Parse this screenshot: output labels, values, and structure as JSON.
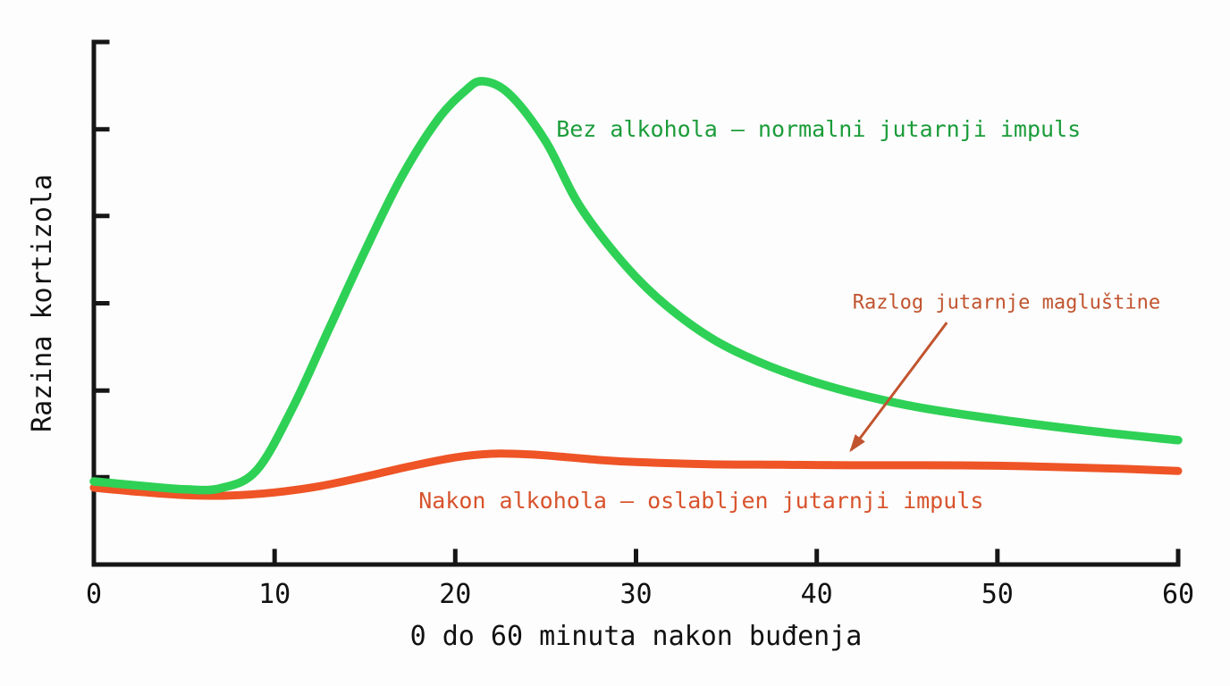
{
  "chart_data": {
    "type": "line",
    "title": "",
    "xlabel": "0 do 60 minuta nakon buđenja",
    "ylabel": "Razina kortizola",
    "xlim": [
      0,
      60
    ],
    "ylim": [
      0,
      100
    ],
    "x_ticks": [
      0,
      10,
      20,
      30,
      40,
      50,
      60
    ],
    "y_tick_positions": [
      100,
      83.3,
      66.7,
      50,
      33.3,
      16.7
    ],
    "grid": false,
    "legend_position": "inline-labels",
    "axis_color": "#161616",
    "series": [
      {
        "name": "Nakon alkohola — oslabljen jutarnji impuls",
        "color": "#ee5426",
        "label_color": "#d8532c",
        "label_pos": [
          33.6,
          12.0
        ],
        "points": [
          [
            0,
            14.7
          ],
          [
            2.5,
            13.9
          ],
          [
            5,
            13.3
          ],
          [
            7.5,
            13.2
          ],
          [
            10,
            13.8
          ],
          [
            12.5,
            15.0
          ],
          [
            15,
            16.8
          ],
          [
            17.5,
            18.8
          ],
          [
            20,
            20.5
          ],
          [
            22,
            21.2
          ],
          [
            24,
            21.1
          ],
          [
            26,
            20.6
          ],
          [
            28,
            20.0
          ],
          [
            30,
            19.6
          ],
          [
            34,
            19.2
          ],
          [
            38,
            19.1
          ],
          [
            42,
            19.0
          ],
          [
            46,
            19.0
          ],
          [
            50,
            18.9
          ],
          [
            54,
            18.6
          ],
          [
            57,
            18.3
          ],
          [
            60,
            17.9
          ]
        ]
      },
      {
        "name": "Bez alkohola — normalni jutarnji impuls",
        "color": "#2ed155",
        "label_color": "#1b9c3a",
        "label_pos": [
          40.1,
          83.1
        ],
        "points": [
          [
            0,
            15.9
          ],
          [
            2.5,
            15.1
          ],
          [
            5,
            14.4
          ],
          [
            7,
            14.6
          ],
          [
            9,
            18
          ],
          [
            11,
            30
          ],
          [
            13,
            45
          ],
          [
            15,
            60
          ],
          [
            17,
            74
          ],
          [
            19,
            85
          ],
          [
            20.5,
            90.5
          ],
          [
            21.5,
            92.5
          ],
          [
            23,
            90
          ],
          [
            25,
            81
          ],
          [
            27,
            68
          ],
          [
            30,
            55
          ],
          [
            33,
            46
          ],
          [
            36,
            40
          ],
          [
            40,
            34.8
          ],
          [
            45,
            30.5
          ],
          [
            50,
            27.8
          ],
          [
            55,
            25.6
          ],
          [
            60,
            23.8
          ]
        ]
      }
    ],
    "annotation": {
      "text": "Razlog jutarnje magluštine",
      "color": "#c1542f",
      "text_pos": [
        50.5,
        50.0
      ],
      "arrow_from": [
        47.2,
        46.3
      ],
      "arrow_to": [
        41.9,
        21.9
      ]
    }
  }
}
